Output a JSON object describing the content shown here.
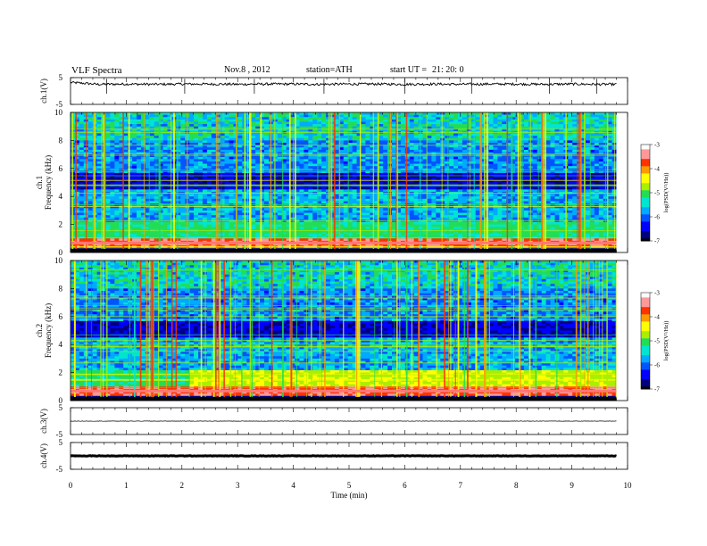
{
  "header": {
    "title": "VLF  Spectra",
    "date": "Nov.8  , 2012",
    "station": "station=ATH",
    "start_label": "start  UT  =",
    "start_time": "21: 20: 0"
  },
  "colors": {
    "spectrogram_scale": [
      "#000000",
      "#00007f",
      "#0000ff",
      "#0055ff",
      "#00aaff",
      "#00e5d0",
      "#22dd55",
      "#aaee00",
      "#ffff00",
      "#ff9900",
      "#ff3300",
      "#ff9999",
      "#ffffff"
    ],
    "trace": "#000000"
  },
  "chart_data": [
    {
      "type": "line",
      "id": "ch1-waveform",
      "ylabel": "ch.1(V)",
      "ylim": [
        -5,
        5
      ],
      "yticks": [
        5,
        -5
      ],
      "description_of_series": "baseline near 3 V with small noise and occasional spikes",
      "x": [
        0,
        0.5,
        1,
        1.5,
        2,
        2.5,
        3,
        3.5,
        4,
        4.5,
        5,
        5.5,
        6,
        6.5,
        7,
        7.5,
        8,
        8.5,
        9,
        9.5,
        9.8
      ],
      "y": [
        3.2,
        2.5,
        2.6,
        2.5,
        2.6,
        2.6,
        2.5,
        2.6,
        2.6,
        2.5,
        2.6,
        2.6,
        2.5,
        2.6,
        2.5,
        2.6,
        2.6,
        2.5,
        2.6,
        2.5,
        2.5
      ],
      "xlim": [
        0,
        10
      ]
    },
    {
      "type": "heatmap",
      "id": "ch1-spectrogram",
      "ylabel": "ch.1\nFrequency (kHz)",
      "ylim": [
        0,
        10
      ],
      "yticks": [
        0,
        2,
        4,
        6,
        8,
        10
      ],
      "xlim": [
        0,
        10
      ],
      "data_extent_min": 9.8,
      "colorbar": {
        "label": "log(PSD(V²/Hz))",
        "ticks": [
          -3,
          -4,
          -5,
          -6,
          -7
        ],
        "range": [
          -7,
          -3
        ]
      },
      "dominant_features": [
        "intense band near 0.3–1 kHz",
        "sferic vertical streaks throughout",
        "dark band near 5 kHz"
      ]
    },
    {
      "type": "heatmap",
      "id": "ch2-spectrogram",
      "ylabel": "ch.2\nFrequency (kHz)",
      "ylim": [
        0,
        10
      ],
      "yticks": [
        0,
        2,
        4,
        6,
        8,
        10
      ],
      "xlim": [
        0,
        10
      ],
      "data_extent_min": 9.8,
      "colorbar": {
        "label": "log(PSD(V²/Hz))",
        "ticks": [
          -3,
          -4,
          -5,
          -6,
          -7
        ],
        "range": [
          -7,
          -3
        ]
      },
      "dominant_features": [
        "intense band near 0.3–1 kHz",
        "elevated 1–2 kHz after 2.1 min",
        "sferic vertical streaks throughout"
      ]
    },
    {
      "type": "line",
      "id": "ch3-waveform",
      "ylabel": "ch.3(V)",
      "ylim": [
        -5,
        5
      ],
      "yticks": [
        5,
        -5
      ],
      "x": [
        0,
        9.8
      ],
      "y": [
        0,
        0
      ],
      "xlim": [
        0,
        10
      ]
    },
    {
      "type": "line",
      "id": "ch4-waveform",
      "ylabel": "ch.4(V)",
      "ylim": [
        -5,
        5
      ],
      "yticks": [
        5,
        -5
      ],
      "x": [
        0,
        9.8
      ],
      "y": [
        0,
        0
      ],
      "xlim": [
        0,
        10
      ]
    }
  ],
  "xaxis": {
    "label": "Time  (min)",
    "ticks": [
      0,
      1,
      2,
      3,
      4,
      5,
      6,
      7,
      8,
      9,
      10
    ]
  }
}
